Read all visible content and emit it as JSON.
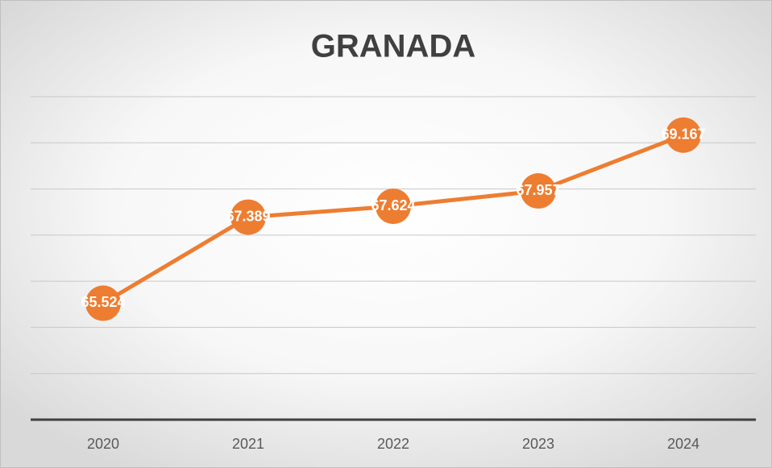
{
  "chart_data": {
    "type": "line",
    "title": "GRANADA",
    "categories": [
      "2020",
      "2021",
      "2022",
      "2023",
      "2024"
    ],
    "series": [
      {
        "name": "GRANADA",
        "color": "#ed7d31",
        "values": [
          65.524,
          67.389,
          67.624,
          67.957,
          69.167
        ]
      }
    ],
    "ylim": [
      63,
      70
    ],
    "yticks": [
      63,
      64,
      65,
      66,
      67,
      68,
      69,
      70
    ],
    "grid": true
  }
}
